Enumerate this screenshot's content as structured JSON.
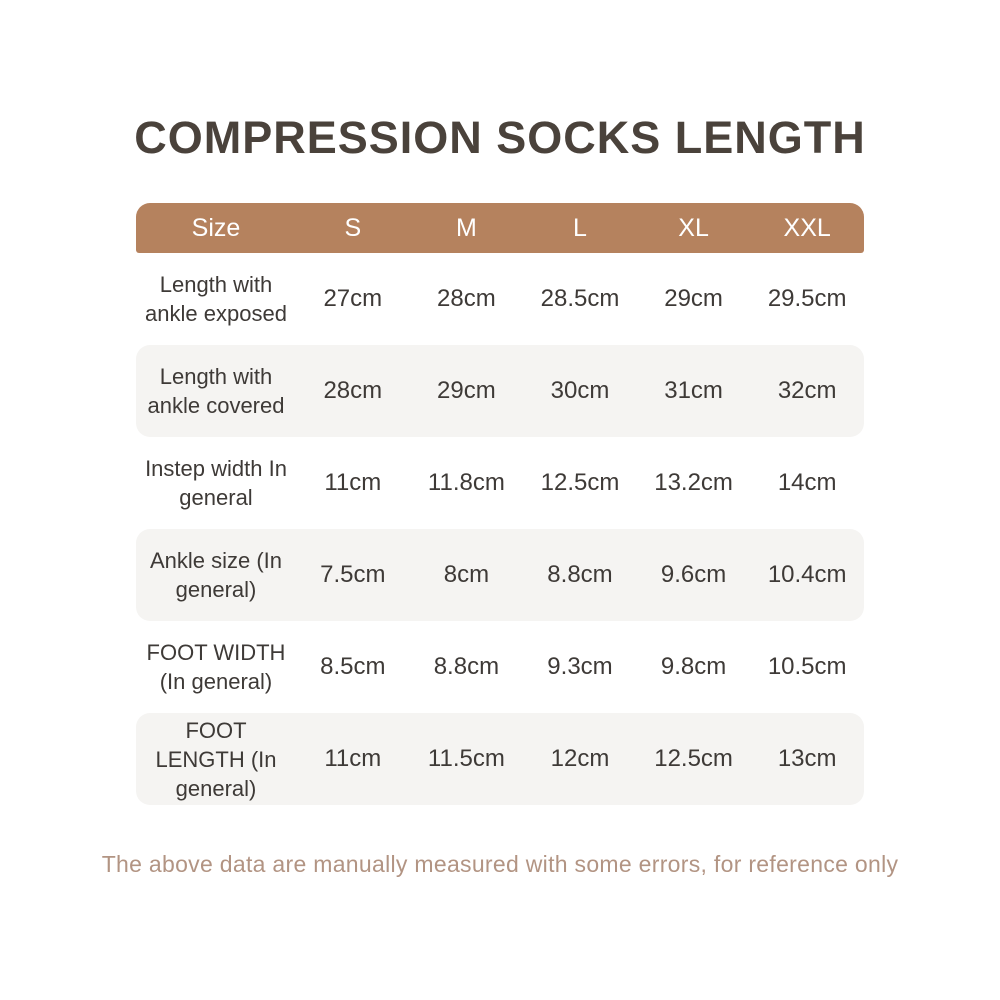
{
  "chart_data": {
    "type": "table",
    "title": "COMPRESSION SOCKS LENGTH",
    "columns": [
      "Size",
      "S",
      "M",
      "L",
      "XL",
      "XXL"
    ],
    "rows": [
      [
        "Length with ankle exposed",
        "27cm",
        "28cm",
        "28.5cm",
        "29cm",
        "29.5cm"
      ],
      [
        "Length with ankle covered",
        "28cm",
        "29cm",
        "30cm",
        "31cm",
        "32cm"
      ],
      [
        "Instep width In general",
        "11cm",
        "11.8cm",
        "12.5cm",
        "13.2cm",
        "14cm"
      ],
      [
        "Ankle size (In general)",
        "7.5cm",
        "8cm",
        "8.8cm",
        "9.6cm",
        "10.4cm"
      ],
      [
        "FOOT WIDTH (In general)",
        "8.5cm",
        "8.8cm",
        "9.3cm",
        "9.8cm",
        "10.5cm"
      ],
      [
        "FOOT LENGTH (In general)",
        "11cm",
        "11.5cm",
        "12cm",
        "12.5cm",
        "13cm"
      ]
    ],
    "note": "The above data are manually measured with some errors, for reference only",
    "layout": {
      "grid": "off",
      "row_striping": "alternate",
      "striped_row_indexes": [
        1,
        3,
        5
      ]
    }
  },
  "colors": {
    "header_bg": "#b5825e",
    "header_text": "#ffffff",
    "alt_row_bg": "#f5f4f2",
    "title_text": "#4a423b",
    "cell_text": "#3e3a37",
    "note_text": "#b29483",
    "page_bg": "#ffffff"
  }
}
